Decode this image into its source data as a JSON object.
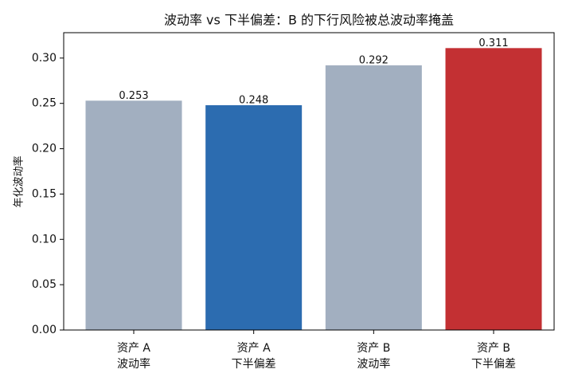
{
  "chart_data": {
    "type": "bar",
    "title": "波动率 vs 下半偏差：B 的下行风险被总波动率掩盖",
    "ylabel": "年化波动率",
    "categories": [
      [
        "资产 A",
        "波动率"
      ],
      [
        "资产 A",
        "下半偏差"
      ],
      [
        "资产 B",
        "波动率"
      ],
      [
        "资产 B",
        "下半偏差"
      ]
    ],
    "values": [
      0.253,
      0.248,
      0.292,
      0.311
    ],
    "colors": [
      "#a2afc0",
      "#2c6cb0",
      "#a2afc0",
      "#c33033"
    ],
    "ylim": [
      0,
      0.328
    ],
    "yticks": [
      {
        "value": 0,
        "label": "0.00"
      },
      0.05,
      {
        "value": 0.1,
        "label": "0.10"
      },
      0.15,
      {
        "value": 0.2,
        "label": "0.20"
      },
      0.25,
      {
        "value": 0.3,
        "label": "0.30"
      }
    ],
    "grid": false
  }
}
